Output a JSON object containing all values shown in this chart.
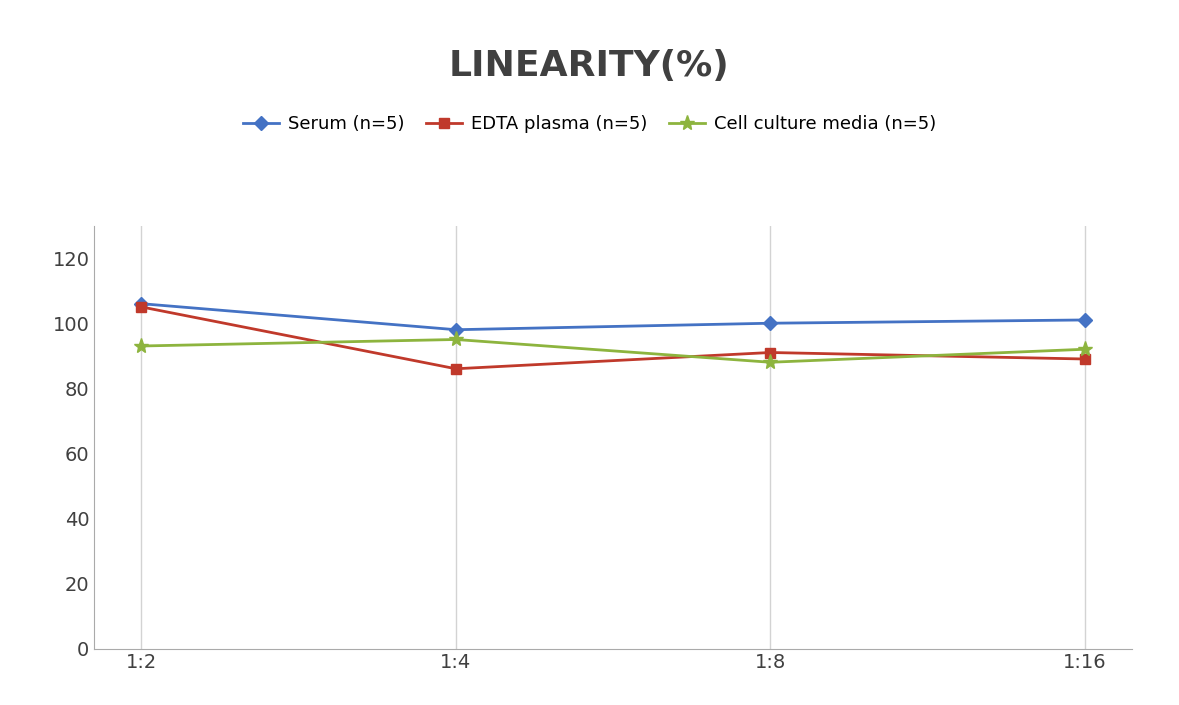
{
  "title": "LINEARITY(%)",
  "x_labels": [
    "1:2",
    "1:4",
    "1:8",
    "1:16"
  ],
  "series": [
    {
      "label": "Serum (n=5)",
      "values": [
        106,
        98,
        100,
        101
      ],
      "color": "#4472C4",
      "marker": "D",
      "marker_size": 7
    },
    {
      "label": "EDTA plasma (n=5)",
      "values": [
        105,
        86,
        91,
        89
      ],
      "color": "#C0392B",
      "marker": "s",
      "marker_size": 7
    },
    {
      "label": "Cell culture media (n=5)",
      "values": [
        93,
        95,
        88,
        92
      ],
      "color": "#8DB43E",
      "marker": "*",
      "marker_size": 11
    }
  ],
  "ylim": [
    0,
    130
  ],
  "yticks": [
    0,
    20,
    40,
    60,
    80,
    100,
    120
  ],
  "background_color": "#FFFFFF",
  "grid_color": "#D3D3D3",
  "title_fontsize": 26,
  "title_color": "#404040",
  "legend_fontsize": 13,
  "tick_fontsize": 14,
  "tick_color": "#404040"
}
